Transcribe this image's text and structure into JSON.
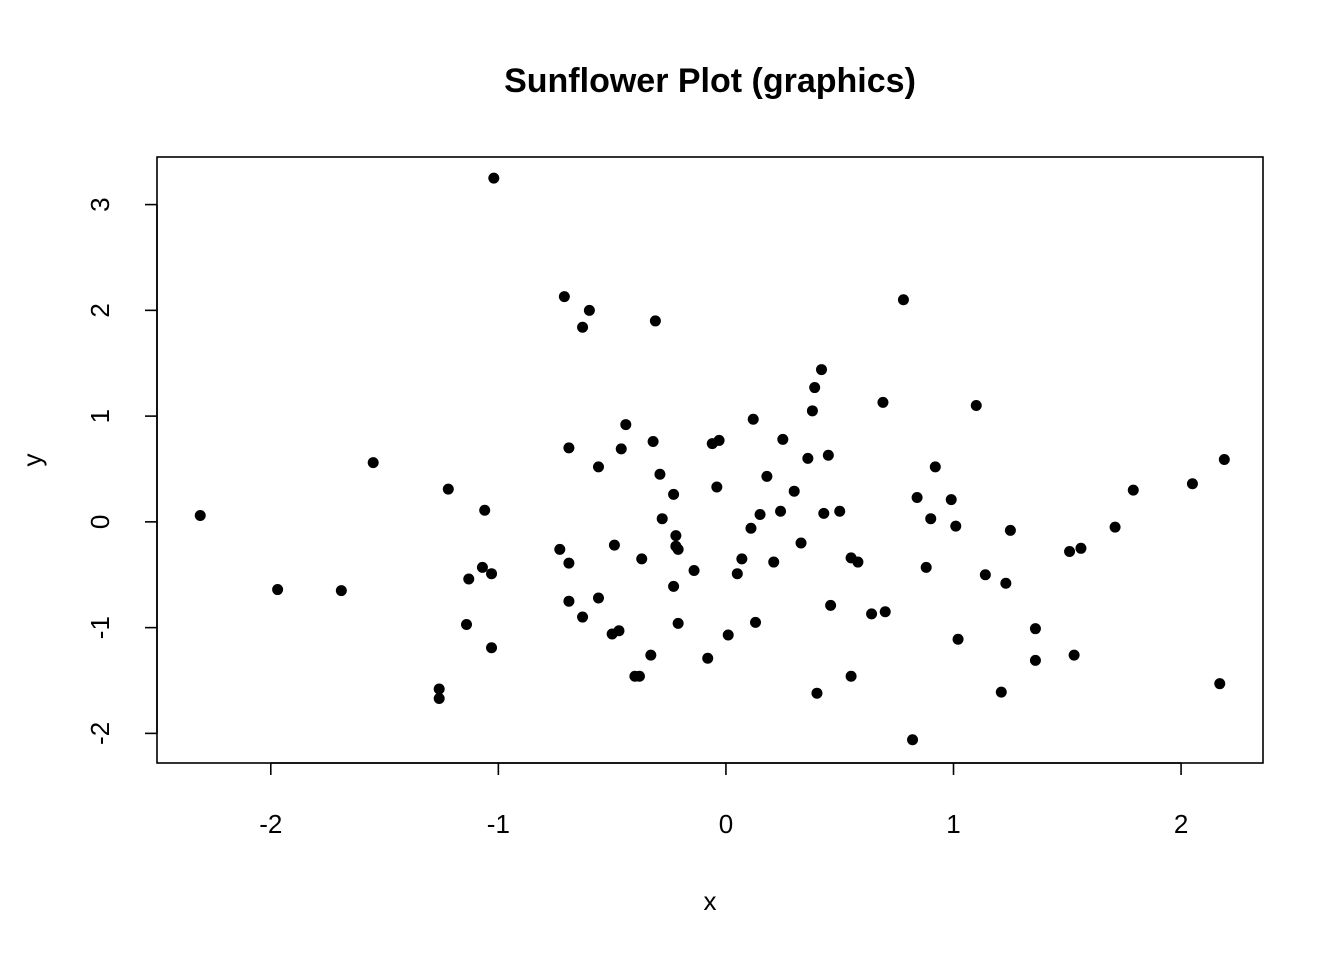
{
  "chart_data": {
    "type": "scatter",
    "title": "Sunflower Plot (graphics)",
    "xlabel": "x",
    "ylabel": "y",
    "xlim": [
      -2.5,
      2.36
    ],
    "ylim": [
      -2.28,
      3.45
    ],
    "xticks": [
      -2,
      -1,
      0,
      1,
      2
    ],
    "xtick_labels": [
      "-2",
      "-1",
      "0",
      "1",
      "2"
    ],
    "yticks": [
      -2,
      -1,
      0,
      1,
      2,
      3
    ],
    "ytick_labels": [
      "-2",
      "-1",
      "0",
      "1",
      "2",
      "3"
    ],
    "grid": false,
    "legend": false,
    "point_color": "#000000",
    "points": [
      [
        -2.31,
        0.06
      ],
      [
        -1.97,
        -0.64
      ],
      [
        -1.69,
        -0.65
      ],
      [
        -1.55,
        0.56
      ],
      [
        -1.26,
        -1.58
      ],
      [
        -1.26,
        -1.67
      ],
      [
        -1.22,
        0.31
      ],
      [
        -1.14,
        -0.97
      ],
      [
        -1.13,
        -0.54
      ],
      [
        -1.07,
        -0.43
      ],
      [
        -1.06,
        0.11
      ],
      [
        -1.03,
        -0.49
      ],
      [
        -1.03,
        -1.19
      ],
      [
        -1.02,
        3.25
      ],
      [
        -0.73,
        -0.26
      ],
      [
        -0.71,
        2.13
      ],
      [
        -0.69,
        0.7
      ],
      [
        -0.69,
        -0.39
      ],
      [
        -0.69,
        -0.75
      ],
      [
        -0.63,
        1.84
      ],
      [
        -0.63,
        -0.9
      ],
      [
        -0.6,
        2.0
      ],
      [
        -0.56,
        0.52
      ],
      [
        -0.56,
        -0.72
      ],
      [
        -0.5,
        -1.06
      ],
      [
        -0.49,
        -0.22
      ],
      [
        -0.47,
        -1.03
      ],
      [
        -0.46,
        0.69
      ],
      [
        -0.44,
        0.92
      ],
      [
        -0.4,
        -1.46
      ],
      [
        -0.38,
        -1.46
      ],
      [
        -0.37,
        -0.35
      ],
      [
        -0.33,
        -1.26
      ],
      [
        -0.32,
        0.76
      ],
      [
        -0.31,
        1.9
      ],
      [
        -0.29,
        0.45
      ],
      [
        -0.28,
        0.03
      ],
      [
        -0.23,
        -0.61
      ],
      [
        -0.23,
        0.26
      ],
      [
        -0.22,
        -0.13
      ],
      [
        -0.22,
        -0.23
      ],
      [
        -0.21,
        -0.96
      ],
      [
        -0.21,
        -0.26
      ],
      [
        -0.14,
        -0.46
      ],
      [
        -0.08,
        -1.29
      ],
      [
        -0.06,
        0.74
      ],
      [
        -0.04,
        0.33
      ],
      [
        -0.03,
        0.77
      ],
      [
        0.01,
        -1.07
      ],
      [
        0.05,
        -0.49
      ],
      [
        0.07,
        -0.35
      ],
      [
        0.11,
        -0.06
      ],
      [
        0.12,
        0.97
      ],
      [
        0.13,
        -0.95
      ],
      [
        0.15,
        0.07
      ],
      [
        0.18,
        0.43
      ],
      [
        0.21,
        -0.38
      ],
      [
        0.24,
        0.1
      ],
      [
        0.25,
        0.78
      ],
      [
        0.3,
        0.29
      ],
      [
        0.33,
        -0.2
      ],
      [
        0.36,
        0.6
      ],
      [
        0.38,
        1.05
      ],
      [
        0.39,
        1.27
      ],
      [
        0.4,
        -1.62
      ],
      [
        0.42,
        1.44
      ],
      [
        0.43,
        0.08
      ],
      [
        0.45,
        0.63
      ],
      [
        0.46,
        -0.79
      ],
      [
        0.5,
        0.1
      ],
      [
        0.55,
        -0.34
      ],
      [
        0.55,
        -1.46
      ],
      [
        0.58,
        -0.38
      ],
      [
        0.64,
        -0.87
      ],
      [
        0.69,
        1.13
      ],
      [
        0.7,
        -0.85
      ],
      [
        0.78,
        2.1
      ],
      [
        0.82,
        -2.06
      ],
      [
        0.84,
        0.23
      ],
      [
        0.88,
        -0.43
      ],
      [
        0.9,
        0.03
      ],
      [
        0.92,
        0.52
      ],
      [
        0.99,
        0.21
      ],
      [
        1.01,
        -0.04
      ],
      [
        1.02,
        -1.11
      ],
      [
        1.1,
        1.1
      ],
      [
        1.14,
        -0.5
      ],
      [
        1.21,
        -1.61
      ],
      [
        1.23,
        -0.58
      ],
      [
        1.25,
        -0.08
      ],
      [
        1.36,
        -1.31
      ],
      [
        1.36,
        -1.01
      ],
      [
        1.51,
        -0.28
      ],
      [
        1.53,
        -1.26
      ],
      [
        1.56,
        -0.25
      ],
      [
        1.71,
        -0.05
      ],
      [
        1.79,
        0.3
      ],
      [
        2.05,
        0.36
      ],
      [
        2.17,
        -1.53
      ],
      [
        2.19,
        0.59
      ]
    ]
  }
}
